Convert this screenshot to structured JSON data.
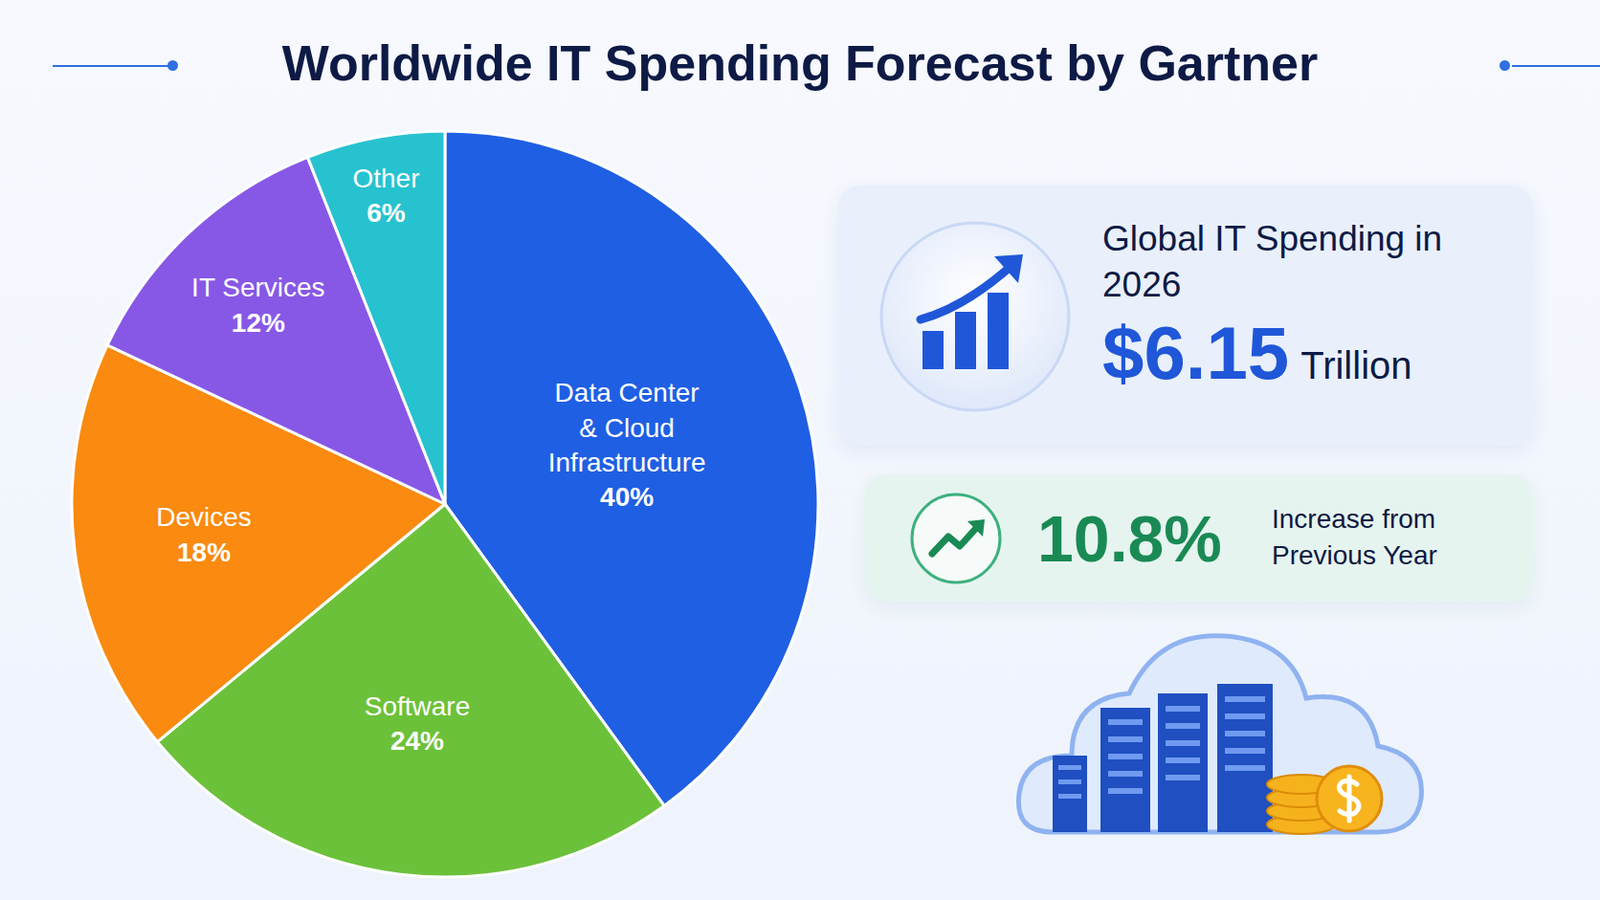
{
  "chart_data": {
    "type": "pie",
    "title": "Worldwide IT Spending Forecast by Gartner",
    "categories": [
      "Data Center & Cloud Infrastructure",
      "Software",
      "Devices",
      "IT Services",
      "Other"
    ],
    "values": [
      40,
      24,
      18,
      12,
      6
    ],
    "value_labels": [
      "40%",
      "24%",
      "18%",
      "12%",
      "6%"
    ],
    "colors": [
      "#1f5fe3",
      "#6cc13a",
      "#fa8a10",
      "#8758e6",
      "#27c2cf"
    ],
    "data_labels": true
  },
  "stats": [
    {
      "label": "Global IT Spending in 2026",
      "value": "$6.15",
      "unit": "Trillion"
    },
    {
      "label": "Increase from Previous Year",
      "value": "10.8%"
    }
  ]
}
